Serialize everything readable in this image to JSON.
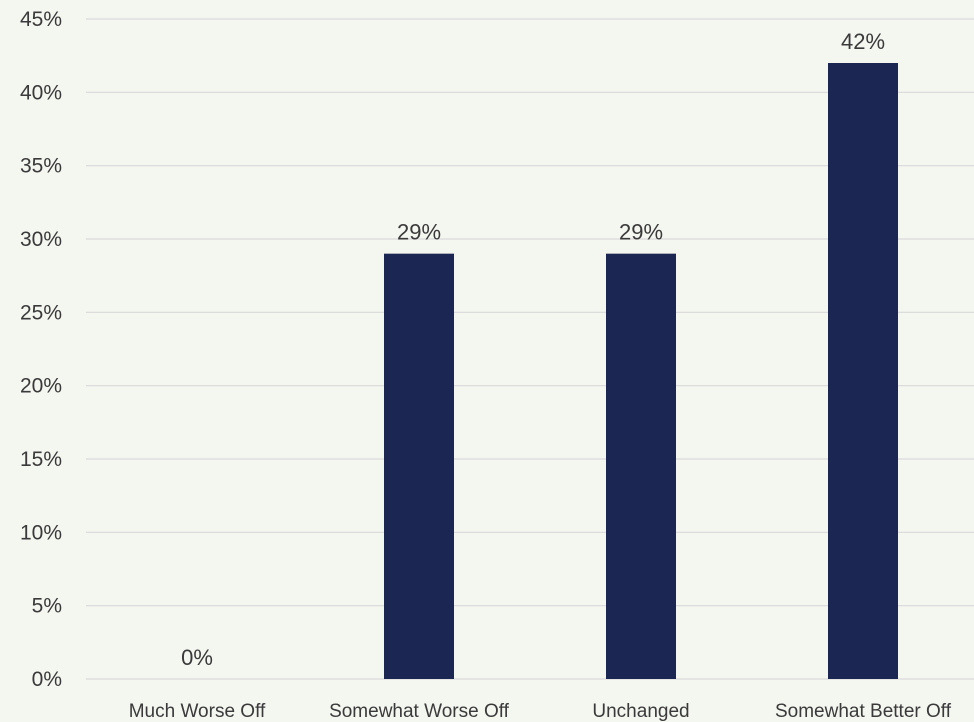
{
  "chart_data": {
    "type": "bar",
    "categories": [
      "Much Worse Off",
      "Somewhat Worse Off",
      "Unchanged",
      "Somewhat Better Off"
    ],
    "values": [
      0,
      29,
      29,
      42
    ],
    "data_labels": [
      "0%",
      "29%",
      "29%",
      "42%"
    ],
    "y_ticks": [
      "0%",
      "5%",
      "10%",
      "15%",
      "20%",
      "25%",
      "30%",
      "35%",
      "40%",
      "45%"
    ],
    "ylim": [
      0,
      45
    ],
    "grid": true,
    "bar_color": "#1b2653"
  }
}
